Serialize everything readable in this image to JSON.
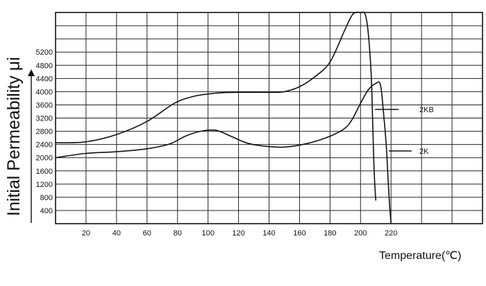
{
  "chart_data": {
    "type": "line",
    "title": "",
    "ylabel": "Initial Permeability μi",
    "xlabel": "Temperature(℃)",
    "xlim": [
      0,
      280
    ],
    "ylim": [
      0,
      6400
    ],
    "x_ticks": [
      "20",
      "40",
      "60",
      "80",
      "100",
      "120",
      "140",
      "160",
      "180",
      "200",
      "220"
    ],
    "y_ticks": [
      "400",
      "800",
      "1200",
      "1600",
      "2000",
      "2400",
      "2800",
      "3200",
      "3600",
      "4000",
      "4400",
      "4800",
      "5200"
    ],
    "grid": true,
    "series": [
      {
        "name": "2KB",
        "x": [
          0,
          20,
          40,
          60,
          78,
          90,
          100,
          110,
          120,
          140,
          150,
          160,
          170,
          180,
          190,
          195,
          200,
          203,
          205,
          207,
          208,
          209,
          210
        ],
        "values": [
          2450,
          2480,
          2700,
          3100,
          3650,
          3850,
          3930,
          3970,
          3980,
          3980,
          4000,
          4150,
          4450,
          4900,
          5900,
          6350,
          6400,
          6350,
          5800,
          4500,
          3000,
          1500,
          700
        ]
      },
      {
        "name": "2K",
        "x": [
          0,
          20,
          40,
          60,
          75,
          85,
          95,
          105,
          115,
          125,
          135,
          150,
          165,
          180,
          190,
          195,
          200,
          205,
          210,
          213,
          215,
          217,
          218,
          219,
          220
        ],
        "values": [
          2000,
          2130,
          2180,
          2270,
          2420,
          2650,
          2800,
          2830,
          2650,
          2450,
          2360,
          2320,
          2430,
          2650,
          2900,
          3200,
          3650,
          4050,
          4250,
          4220,
          3400,
          2300,
          1400,
          600,
          0
        ]
      }
    ]
  }
}
